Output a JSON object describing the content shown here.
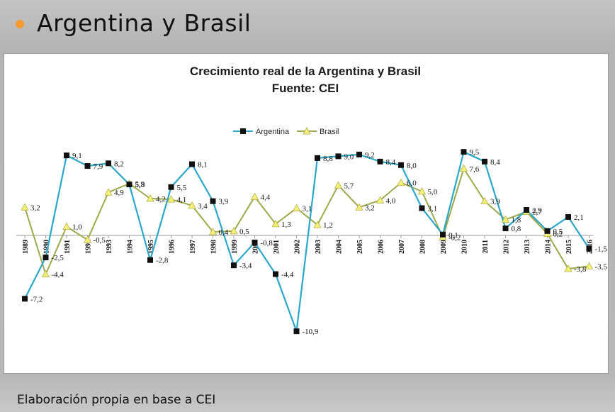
{
  "slide": {
    "title": "Argentina y Brasil",
    "footer": "Elaboración propia en base a CEI"
  },
  "colors": {
    "argentina": "#2aa7c9",
    "brasil": "#9fa84a",
    "argentina_marker": "#111111",
    "brasil_marker": "#f4f07a",
    "bullet": "#f59a2f"
  },
  "chart_data": {
    "type": "line",
    "title": "Crecimiento real de la Argentina y Brasil",
    "subtitle": "Fuente: CEI",
    "legend_position": "top-center",
    "grid": false,
    "ylim": [
      -12,
      11
    ],
    "x": [
      "1989",
      "1990",
      "1991",
      "1992",
      "1993",
      "1994",
      "1995",
      "1996",
      "1997",
      "1998",
      "1999",
      "2000",
      "2001",
      "2002",
      "2003",
      "2004",
      "2005",
      "2006",
      "2007",
      "2008",
      "2009",
      "2010",
      "2011",
      "2012",
      "2013",
      "2014",
      "2015",
      "2016"
    ],
    "series": [
      {
        "name": "Argentina",
        "values": [
          -7.2,
          -2.5,
          9.1,
          7.9,
          8.2,
          5.8,
          -2.8,
          5.5,
          8.1,
          3.9,
          -3.4,
          -0.8,
          -4.4,
          -10.9,
          8.8,
          9.0,
          9.2,
          8.4,
          8.0,
          3.1,
          0.1,
          9.5,
          8.4,
          0.8,
          2.9,
          0.5,
          2.1,
          -1.5
        ],
        "labels": [
          "-7,2",
          "-2,5",
          "9,1",
          "7,9",
          "8,2",
          "5,8",
          "-2,8",
          "5,5",
          "8,1",
          "3,9",
          "-3,4",
          "-0,8",
          "-4,4",
          "-10,9",
          "8,8",
          "9,0",
          "9,2",
          "8,4",
          "8,0",
          "3,1",
          "0,1",
          "9,5",
          "8,4",
          "0,8",
          "2,9",
          "0,5",
          "2,1",
          "-1,5"
        ]
      },
      {
        "name": "Brasil",
        "values": [
          3.2,
          -4.4,
          1.0,
          -0.5,
          4.9,
          5.9,
          4.2,
          4.1,
          3.4,
          0.4,
          0.5,
          4.4,
          1.3,
          3.1,
          1.2,
          5.7,
          3.2,
          4.0,
          6.0,
          5.0,
          -0.2,
          7.6,
          3.9,
          1.8,
          2.7,
          0.2,
          -3.8,
          -3.5
        ],
        "labels": [
          "3,2",
          "-4,4",
          "1,0",
          "-0,5",
          "4,9",
          "5,9",
          "4,2",
          "4,1",
          "3,4",
          "0,4",
          "0,5",
          "4,4",
          "1,3",
          "3,1",
          "1,2",
          "5,7",
          "3,2",
          "4,0",
          "6,0",
          "5,0",
          "-0,2",
          "7,6",
          "3,9",
          "1,8",
          "2,7",
          "0,2",
          "-3,8",
          "-3,5"
        ]
      }
    ]
  }
}
